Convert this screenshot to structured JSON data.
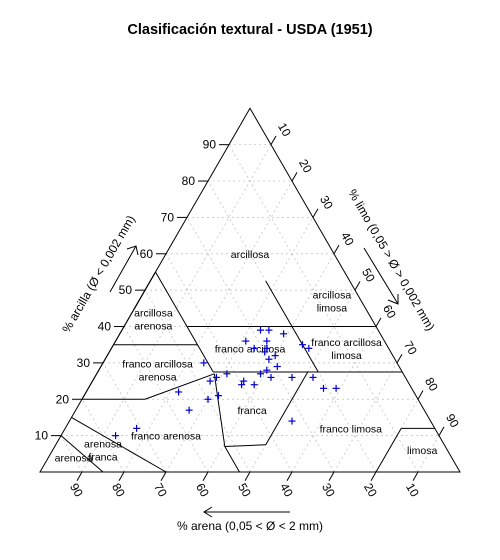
{
  "chart_data": {
    "type": "scatter",
    "title": "Clasificación textural - USDA (1951)",
    "axes": {
      "clay": {
        "label": "% arcilla (Ø < 0,002 mm)",
        "ticks": [
          "10",
          "20",
          "30",
          "40",
          "50",
          "60",
          "70",
          "80",
          "90"
        ]
      },
      "silt": {
        "label": "% limo (0,05 > Ø > 0,002 mm)",
        "ticks": [
          "10",
          "20",
          "30",
          "40",
          "50",
          "60",
          "70",
          "80",
          "90"
        ]
      },
      "sand": {
        "label": "% arena (0,05 < Ø < 2 mm)",
        "ticks": [
          "90",
          "80",
          "70",
          "60",
          "50",
          "40",
          "30",
          "20",
          "10"
        ]
      }
    },
    "grid": true,
    "classes": [
      {
        "name": "arcillosa",
        "lines": [
          "arcillosa"
        ]
      },
      {
        "name": "arcillosa limosa",
        "lines": [
          "arcillosa",
          "limosa"
        ]
      },
      {
        "name": "arcillosa arenosa",
        "lines": [
          "arcillosa",
          "arenosa"
        ]
      },
      {
        "name": "franco arcillosa",
        "lines": [
          "franco arcillosa"
        ]
      },
      {
        "name": "franco arcillosa limosa",
        "lines": [
          "franco arcillosa",
          "limosa"
        ]
      },
      {
        "name": "franco arcillosa arenosa",
        "lines": [
          "franco arcillosa",
          "arenosa"
        ]
      },
      {
        "name": "franca",
        "lines": [
          "franca"
        ]
      },
      {
        "name": "franco limosa",
        "lines": [
          "franco limosa"
        ]
      },
      {
        "name": "limosa",
        "lines": [
          "limosa"
        ]
      },
      {
        "name": "franco arenosa",
        "lines": [
          "franco arenosa"
        ]
      },
      {
        "name": "arenosa franca",
        "lines": [
          "arenosa",
          "franca"
        ]
      },
      {
        "name": "arenosa",
        "lines": [
          "arenosa"
        ]
      }
    ],
    "points": [
      {
        "sand": 28,
        "silt": 33,
        "clay": 39
      },
      {
        "sand": 26,
        "silt": 35,
        "clay": 39
      },
      {
        "sand": 23,
        "silt": 39,
        "clay": 38
      },
      {
        "sand": 33,
        "silt": 31,
        "clay": 36
      },
      {
        "sand": 28,
        "silt": 36,
        "clay": 36
      },
      {
        "sand": 20,
        "silt": 45,
        "clay": 35
      },
      {
        "sand": 19,
        "silt": 47,
        "clay": 34
      },
      {
        "sand": 32,
        "silt": 34,
        "clay": 34
      },
      {
        "sand": 29,
        "silt": 37,
        "clay": 34
      },
      {
        "sand": 30,
        "silt": 37,
        "clay": 33
      },
      {
        "sand": 28,
        "silt": 40,
        "clay": 32
      },
      {
        "sand": 30,
        "silt": 39,
        "clay": 31
      },
      {
        "sand": 46,
        "silt": 24,
        "clay": 30
      },
      {
        "sand": 29,
        "silt": 42,
        "clay": 29
      },
      {
        "sand": 32,
        "silt": 40,
        "clay": 28
      },
      {
        "sand": 34,
        "silt": 39,
        "clay": 27
      },
      {
        "sand": 42,
        "silt": 31,
        "clay": 27
      },
      {
        "sand": 32,
        "silt": 42,
        "clay": 26
      },
      {
        "sand": 22,
        "silt": 52,
        "clay": 26
      },
      {
        "sand": 27,
        "silt": 47,
        "clay": 26
      },
      {
        "sand": 45,
        "silt": 29,
        "clay": 26
      },
      {
        "sand": 39,
        "silt": 36,
        "clay": 25
      },
      {
        "sand": 47,
        "silt": 28,
        "clay": 25
      },
      {
        "sand": 37,
        "silt": 39,
        "clay": 24
      },
      {
        "sand": 40,
        "silt": 36,
        "clay": 24
      },
      {
        "sand": 21,
        "silt": 56,
        "clay": 23
      },
      {
        "sand": 18,
        "silt": 59,
        "clay": 23
      },
      {
        "sand": 56,
        "silt": 22,
        "clay": 22
      },
      {
        "sand": 47,
        "silt": 32,
        "clay": 21
      },
      {
        "sand": 50,
        "silt": 30,
        "clay": 20
      },
      {
        "sand": 56,
        "silt": 27,
        "clay": 17
      },
      {
        "sand": 33,
        "silt": 53,
        "clay": 14
      },
      {
        "sand": 71,
        "silt": 17,
        "clay": 12
      },
      {
        "sand": 77,
        "silt": 13,
        "clay": 10
      }
    ],
    "point_color": "#0000cc"
  }
}
